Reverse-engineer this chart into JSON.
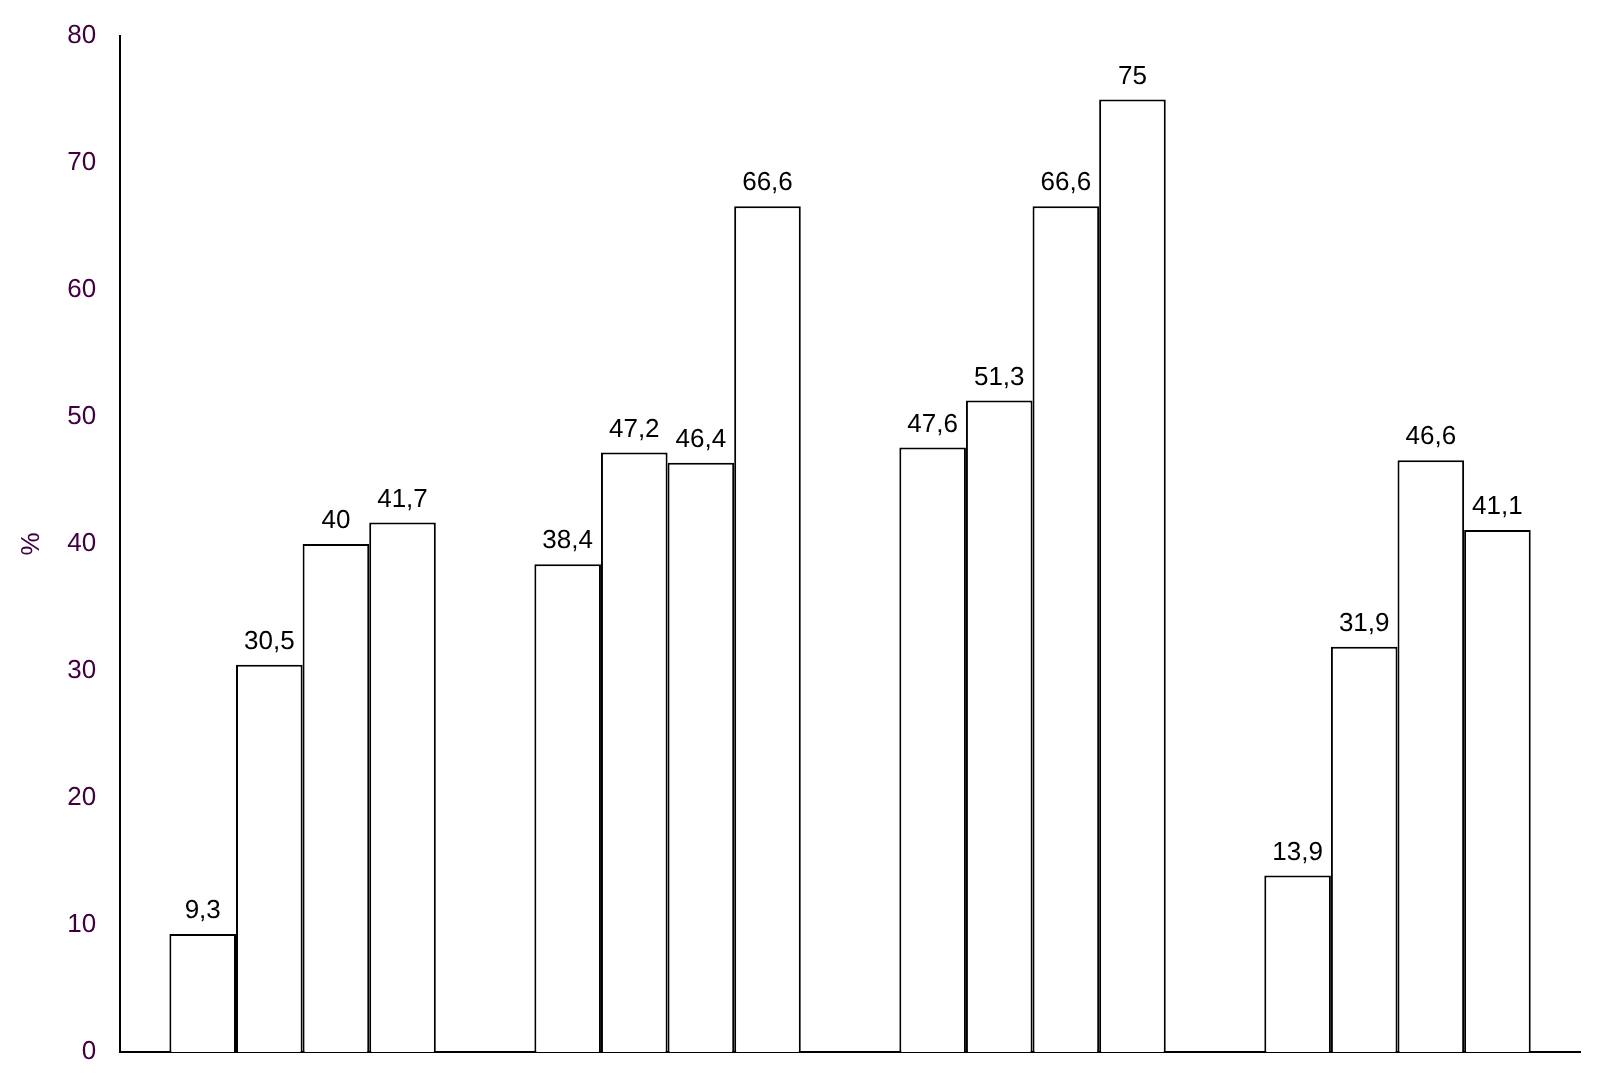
{
  "chart_data": {
    "type": "bar",
    "ylabel": "%",
    "categories": [
      null,
      null,
      null,
      null
    ],
    "series": [
      {
        "color": "#ffffff",
        "values": [
          9.3,
          38.4,
          47.6,
          13.9
        ],
        "value_labels": [
          "9,3",
          "38,4",
          "47,6",
          "13,9"
        ]
      },
      {
        "color": "#ffffff",
        "values": [
          30.5,
          47.2,
          51.3,
          31.9
        ],
        "value_labels": [
          "30,5",
          "47,2",
          "51,3",
          "31,9"
        ]
      },
      {
        "color": "#ffffff",
        "values": [
          40,
          46.4,
          66.6,
          46.6
        ],
        "value_labels": [
          "40",
          "46,4",
          "66,6",
          "46,6"
        ]
      },
      {
        "color": "#ffffff",
        "values": [
          41.7,
          66.6,
          75,
          41.1
        ],
        "value_labels": [
          "41,7",
          "66,6",
          "75",
          "41,1"
        ]
      }
    ],
    "ylim": [
      0,
      80
    ],
    "yticks": [
      0,
      10,
      20,
      30,
      40,
      50,
      60,
      70,
      80
    ],
    "grid": false,
    "legend": false
  }
}
